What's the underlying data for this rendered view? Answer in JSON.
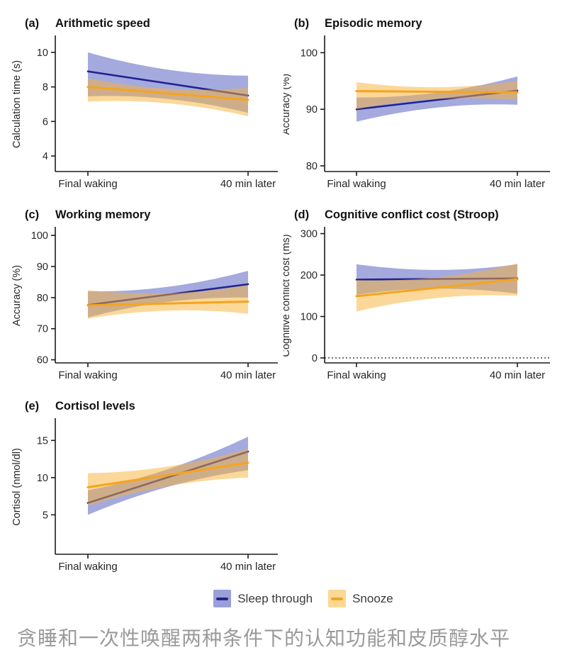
{
  "chart_data": {
    "type": "line",
    "x_categories": [
      "Final waking",
      "40 min later"
    ],
    "legend_position": "bottom",
    "grid": false,
    "series_names": [
      "Sleep through",
      "Snooze"
    ],
    "panels": [
      {
        "label": "(a)",
        "title": "Arithmetic speed",
        "ylabel": "Calculation time (s)",
        "column": "left",
        "ymin": 3.1,
        "ymax": 10.9,
        "yticks": [
          4,
          6,
          8,
          10
        ],
        "zero_line": false,
        "sleep_through": {
          "line": [
            8.9,
            7.5
          ],
          "band_upper": [
            10.0,
            8.65
          ],
          "band_lower": [
            7.45,
            6.5
          ]
        },
        "snooze": {
          "line": [
            8.0,
            7.25
          ],
          "band_upper": [
            8.5,
            7.95
          ],
          "band_lower": [
            7.15,
            6.3
          ]
        }
      },
      {
        "label": "(b)",
        "title": "Episodic memory",
        "ylabel": "Accuracy (%)",
        "column": "right",
        "ymin": 79.0,
        "ymax": 102.8,
        "yticks": [
          80,
          90,
          100
        ],
        "zero_line": false,
        "sleep_through": {
          "line": [
            90.0,
            93.3
          ],
          "band_upper": [
            92.1,
            95.8
          ],
          "band_lower": [
            87.8,
            90.8
          ]
        },
        "snooze": {
          "line": [
            93.2,
            93.0
          ],
          "band_upper": [
            94.8,
            95.0
          ],
          "band_lower": [
            90.0,
            91.6
          ]
        }
      },
      {
        "label": "(c)",
        "title": "Working memory",
        "ylabel": "Accuracy (%)",
        "column": "left",
        "ymin": 59.0,
        "ymax": 102.3,
        "yticks": [
          60,
          70,
          80,
          90,
          100
        ],
        "zero_line": false,
        "sleep_through": {
          "line": [
            77.6,
            84.3
          ],
          "band_upper": [
            82.0,
            88.6
          ],
          "band_lower": [
            73.6,
            80.0
          ]
        },
        "snooze": {
          "line": [
            77.5,
            78.7
          ],
          "band_upper": [
            82.4,
            84.0
          ],
          "band_lower": [
            73.2,
            74.8
          ]
        }
      },
      {
        "label": "(d)",
        "title": "Cognitive conflict cost (Stroop)",
        "ylabel": "Cognitive conflict cost (ms)",
        "column": "right",
        "ymin": -12,
        "ymax": 313,
        "yticks": [
          0,
          100,
          200,
          300
        ],
        "zero_line": true,
        "sleep_through": {
          "line": [
            189,
            192
          ],
          "band_upper": [
            226,
            226
          ],
          "band_lower": [
            152,
            155
          ]
        },
        "snooze": {
          "line": [
            149,
            190
          ],
          "band_upper": [
            188,
            228
          ],
          "band_lower": [
            112,
            150
          ]
        }
      },
      {
        "label": "(e)",
        "title": "Cortisol levels",
        "ylabel": "Cortisol (nmol/dl)",
        "column": "left",
        "ymin": -0.3,
        "ymax": 17.8,
        "yticks": [
          5,
          10,
          15
        ],
        "zero_line": false,
        "sleep_through": {
          "line": [
            6.6,
            13.5
          ],
          "band_upper": [
            8.3,
            15.5
          ],
          "band_lower": [
            5.0,
            11.0
          ]
        },
        "snooze": {
          "line": [
            8.7,
            12.0
          ],
          "band_upper": [
            10.6,
            13.9
          ],
          "band_lower": [
            6.2,
            10.0
          ]
        }
      }
    ],
    "colors": {
      "sleep_line": "#23238f",
      "sleep_band": "#5a64c2",
      "snooze_line": "#f5a41f",
      "snooze_band": "#f7b235",
      "axis": "#1a1a1a",
      "zero_line": "#333333",
      "legend_sleep_bg": "#9aa0d6",
      "legend_snooze_bg": "#fbd894"
    }
  },
  "legend": {
    "items": [
      {
        "label": "Sleep through"
      },
      {
        "label": "Snooze"
      }
    ]
  },
  "caption": {
    "text": "贪睡和一次性唤醒两种条件下的认知功能和皮质醇水平"
  }
}
